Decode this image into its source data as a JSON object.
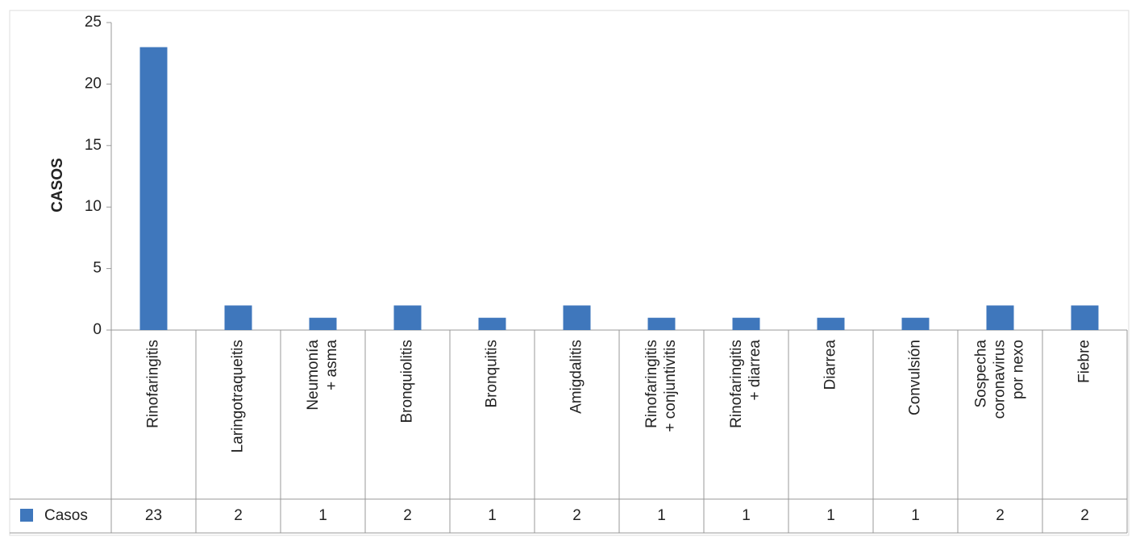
{
  "chart_data": {
    "type": "bar",
    "y_label": "CASOS",
    "categories": [
      "Rinofaringitis",
      "Laringotraqueitis",
      "Neumonía\n+ asma",
      "Bronquiolitis",
      "Bronquitis",
      "Amigdalitis",
      "Rinofaringitis\n+ conjuntivitis",
      "Rinofaringitis\n+ diarrea",
      "Diarrea",
      "Convulsión",
      "Sospecha\ncoronavirus\npor nexo",
      "Fiebre"
    ],
    "series": [
      {
        "name": "Casos",
        "color": "#3f77bc",
        "values": [
          23,
          2,
          1,
          2,
          1,
          2,
          1,
          1,
          1,
          1,
          2,
          2
        ]
      }
    ],
    "ylim": [
      0,
      25
    ],
    "yticks": [
      0,
      5,
      10,
      15,
      20,
      25
    ],
    "grid": false,
    "data_table": true
  }
}
